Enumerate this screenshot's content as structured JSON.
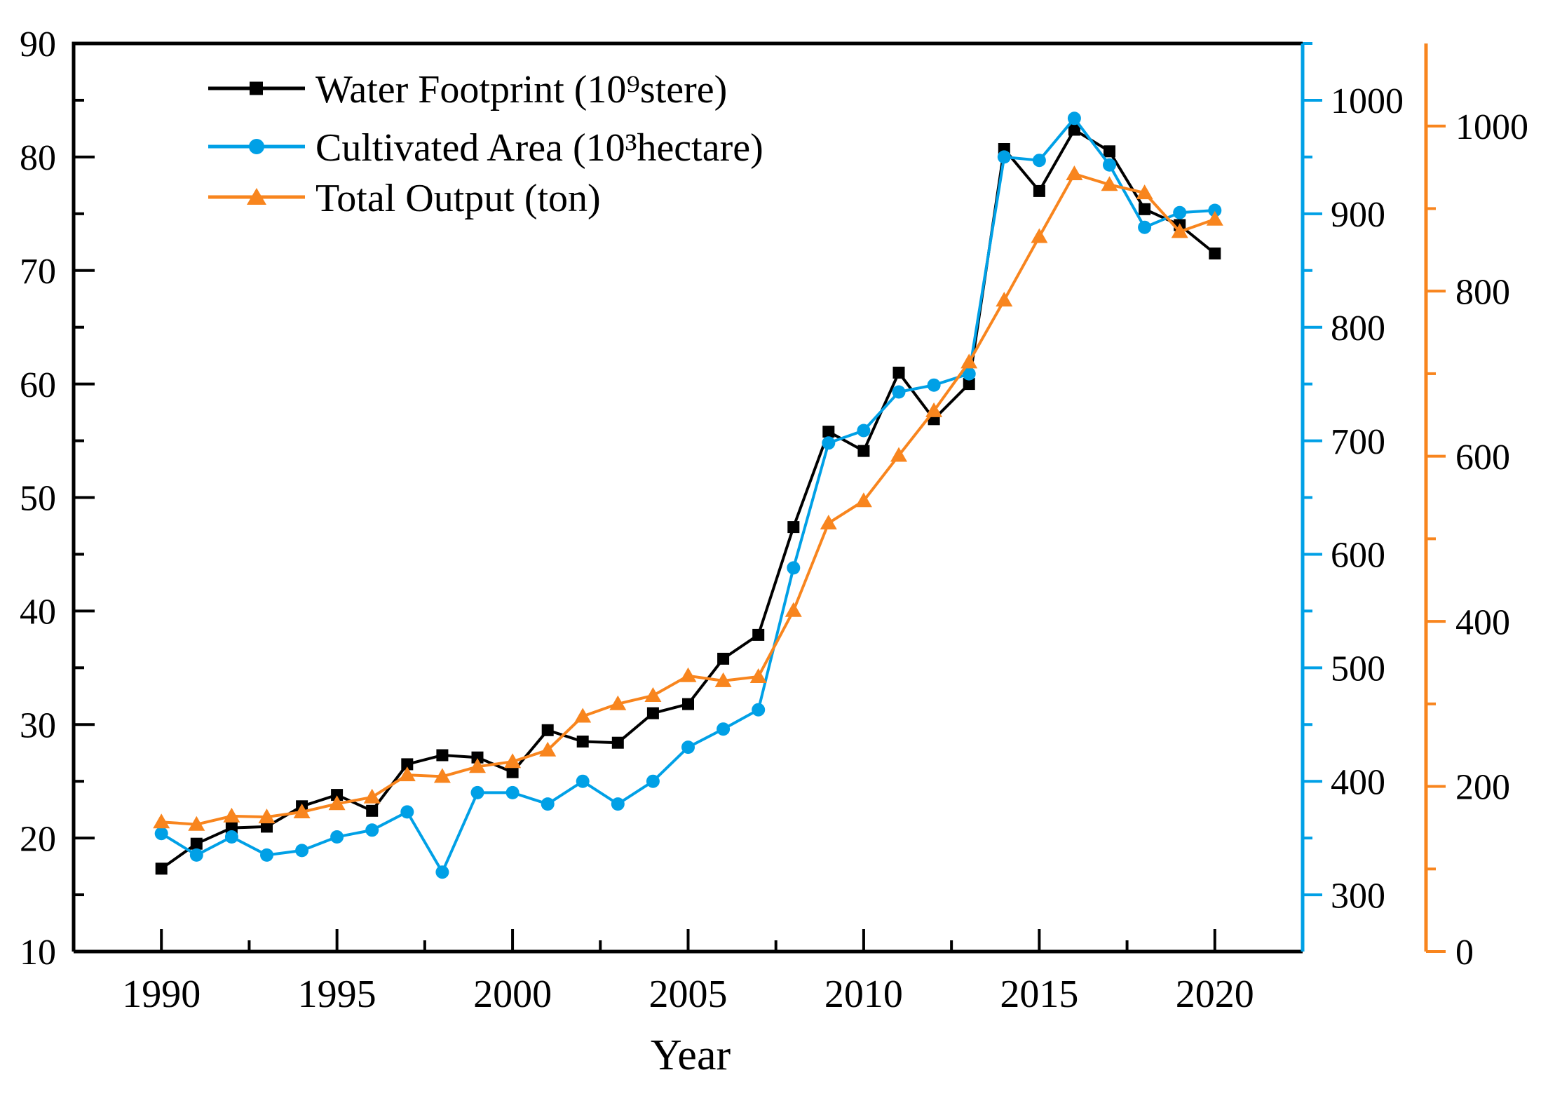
{
  "chart_data": {
    "type": "line",
    "title": "",
    "xlabel": "Year",
    "ylabel": "",
    "grid": false,
    "legend_position": "upper-left",
    "x": [
      1990,
      1991,
      1992,
      1993,
      1994,
      1995,
      1996,
      1997,
      1998,
      1999,
      2000,
      2001,
      2002,
      2003,
      2004,
      2005,
      2006,
      2007,
      2008,
      2009,
      2010,
      2011,
      2012,
      2013,
      2014,
      2015,
      2016,
      2017,
      2018,
      2019,
      2020
    ],
    "series": [
      {
        "id": "water-footprint",
        "name": "Water Footprint (10⁹stere)",
        "axis": "left",
        "color": "#000000",
        "marker": "square",
        "values": [
          17.3,
          19.5,
          20.9,
          21.0,
          22.8,
          23.8,
          22.4,
          26.5,
          27.3,
          27.1,
          25.8,
          29.5,
          28.5,
          28.4,
          31.0,
          31.8,
          35.8,
          37.9,
          47.4,
          55.8,
          54.1,
          61.0,
          56.9,
          60.0,
          80.7,
          77.0,
          82.4,
          80.5,
          75.4,
          74.0,
          71.5
        ]
      },
      {
        "id": "cultivated-area",
        "name": "Cultivated Area (10³hectare)",
        "axis": "right_blue",
        "color": "#00A0E6",
        "marker": "circle",
        "values": [
          354,
          335,
          351,
          335,
          339,
          351,
          357,
          373,
          320,
          390,
          390,
          380,
          400,
          380,
          400,
          430,
          446,
          463,
          588,
          698,
          709,
          743,
          749,
          759,
          950,
          947,
          984,
          943,
          888,
          901,
          903
        ]
      },
      {
        "id": "total-output",
        "name": "Total Output (ton)",
        "axis": "right_orange",
        "color": "#F8851E",
        "marker": "triangle",
        "values": [
          157,
          154,
          164,
          163,
          169,
          179,
          187,
          214,
          212,
          224,
          230,
          244,
          285,
          300,
          310,
          334,
          328,
          333,
          413,
          519,
          546,
          601,
          655,
          714,
          789,
          866,
          942,
          929,
          919,
          872,
          887
        ]
      }
    ],
    "axes": {
      "x": {
        "label": "Year",
        "range": [
          1987.5,
          2022.5
        ],
        "major_ticks": [
          1990,
          1995,
          2000,
          2005,
          2010,
          2015,
          2020
        ],
        "minor_ticks": [
          1992.5,
          1997.5,
          2002.5,
          2007.5,
          2012.5,
          2017.5
        ],
        "color": "#000000"
      },
      "left": {
        "range": [
          10,
          90
        ],
        "major_ticks": [
          10,
          20,
          30,
          40,
          50,
          60,
          70,
          80,
          90
        ],
        "minor_ticks": [
          15,
          25,
          35,
          45,
          55,
          65,
          75,
          85
        ],
        "color": "#000000"
      },
      "right_blue": {
        "range": [
          250,
          1050
        ],
        "major_ticks": [
          300,
          400,
          500,
          600,
          700,
          800,
          900,
          1000
        ],
        "minor_ticks": [
          350,
          450,
          550,
          650,
          750,
          850,
          950,
          1050
        ],
        "color": "#00A0E6"
      },
      "right_orange": {
        "range": [
          0,
          1100
        ],
        "major_ticks": [
          0,
          200,
          400,
          600,
          800,
          1000
        ],
        "minor_ticks": [
          100,
          300,
          500,
          700,
          900
        ],
        "color": "#F8851E"
      }
    }
  }
}
